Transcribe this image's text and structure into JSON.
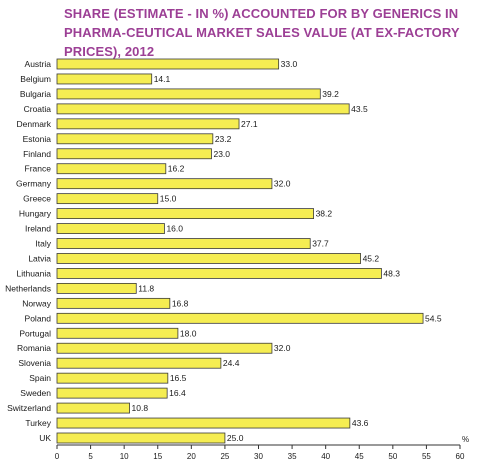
{
  "chart_data": {
    "type": "bar",
    "orientation": "horizontal",
    "title": "SHARE (ESTIMATE - IN %) ACCOUNTED FOR BY GENERICS IN PHARMA-CEUTICAL MARKET SALES VALUE (AT EX-FACTORY PRICES), 2012",
    "categories": [
      "Austria",
      "Belgium",
      "Bulgaria",
      "Croatia",
      "Denmark",
      "Estonia",
      "Finland",
      "France",
      "Germany",
      "Greece",
      "Hungary",
      "Ireland",
      "Italy",
      "Latvia",
      "Lithuania",
      "Netherlands",
      "Norway",
      "Poland",
      "Portugal",
      "Romania",
      "Slovenia",
      "Spain",
      "Sweden",
      "Switzerland",
      "Turkey",
      "UK"
    ],
    "values": [
      33.0,
      14.1,
      39.2,
      43.5,
      27.1,
      23.2,
      23.0,
      16.2,
      32.0,
      15.0,
      38.2,
      16.0,
      37.7,
      45.2,
      48.3,
      11.8,
      16.8,
      54.5,
      18.0,
      32.0,
      24.4,
      16.5,
      16.4,
      10.8,
      43.6,
      25.0
    ],
    "value_labels": [
      "33.0",
      "14.1",
      "39.2",
      "43.5",
      "27.1",
      "23.2",
      "23.0",
      "16.2",
      "32.0",
      "15.0",
      "38.2",
      "16.0",
      "37.7",
      "45.2",
      "48.3",
      "11.8",
      "16.8",
      "54.5",
      "18.0",
      "32.0",
      "24.4",
      "16.5",
      "16.4",
      "10.8",
      "43.6",
      "25.0"
    ],
    "xlim": [
      0,
      60
    ],
    "xticks": [
      "0",
      "5",
      "10",
      "15",
      "20",
      "25",
      "30",
      "35",
      "40",
      "45",
      "50",
      "55",
      "60"
    ],
    "xunit": "%",
    "grid": false,
    "colors": {
      "bar_fill": "#f5ed52",
      "bar_stroke": "#3a3a3a",
      "title": "#9c3f95",
      "axis": "#333333"
    }
  }
}
